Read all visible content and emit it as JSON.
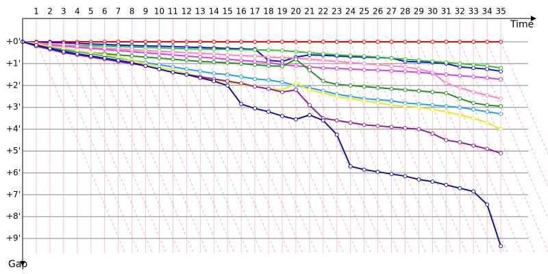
{
  "chart_data": {
    "type": "line",
    "x_label": "Time",
    "y_label": "Gap",
    "x": [
      0,
      1,
      2,
      3,
      4,
      5,
      6,
      7,
      8,
      9,
      10,
      11,
      12,
      13,
      14,
      15,
      16,
      17,
      18,
      19,
      20,
      21,
      22,
      23,
      24,
      25,
      26,
      27,
      28,
      29,
      30,
      31,
      32,
      33,
      34,
      35
    ],
    "xlim": [
      0,
      37
    ],
    "xticks": [
      1,
      2,
      3,
      4,
      5,
      6,
      7,
      8,
      9,
      10,
      11,
      12,
      13,
      14,
      15,
      16,
      17,
      18,
      19,
      20,
      21,
      22,
      23,
      24,
      25,
      26,
      27,
      28,
      29,
      30,
      31,
      32,
      33,
      34,
      35
    ],
    "ylim": [
      0,
      10
    ],
    "yticks": [
      {
        "value": 0,
        "label": "+0'"
      },
      {
        "value": 1,
        "label": "+1'"
      },
      {
        "value": 2,
        "label": "+2'"
      },
      {
        "value": 3,
        "label": "+3'"
      },
      {
        "value": 4,
        "label": "+4'"
      },
      {
        "value": 5,
        "label": "+5'"
      },
      {
        "value": 6,
        "label": "+6'"
      },
      {
        "value": 7,
        "label": "+7'"
      },
      {
        "value": 8,
        "label": "+8'"
      },
      {
        "value": 9,
        "label": "+9'"
      }
    ],
    "y_inverted": true,
    "grid": true,
    "series": [
      {
        "color": "#ff0000",
        "values": [
          0,
          0,
          0,
          0,
          0,
          0,
          0,
          0,
          0,
          0,
          0,
          0,
          0,
          0,
          0,
          0,
          0,
          0,
          0,
          0,
          0,
          0,
          0,
          0,
          0,
          0,
          0,
          0,
          0,
          0,
          0,
          0,
          0,
          0,
          0,
          0
        ]
      },
      {
        "color": "#1010e0",
        "values": [
          0,
          0.02,
          0.03,
          0.05,
          0.07,
          0.1,
          0.12,
          0.15,
          0.17,
          0.19,
          0.2,
          0.22,
          0.24,
          0.26,
          0.28,
          0.3,
          0.32,
          0.34,
          0.85,
          0.9,
          0.7,
          0.6,
          0.62,
          0.65,
          0.68,
          0.7,
          0.72,
          0.75,
          0.9,
          0.92,
          0.95,
          1.0,
          1.15,
          1.2,
          1.25,
          1.35
        ]
      },
      {
        "color": "#30c030",
        "values": [
          0,
          0.1,
          0.13,
          0.15,
          0.17,
          0.18,
          0.2,
          0.22,
          0.24,
          0.26,
          0.28,
          0.3,
          0.32,
          0.33,
          0.34,
          0.35,
          0.36,
          0.37,
          0.38,
          0.4,
          0.45,
          0.5,
          0.55,
          0.6,
          0.63,
          0.66,
          0.7,
          0.75,
          0.8,
          0.85,
          0.9,
          0.95,
          1.0,
          1.05,
          1.1,
          1.2
        ]
      },
      {
        "color": "#d040f0",
        "values": [
          0,
          0.1,
          0.15,
          0.2,
          0.25,
          0.3,
          0.35,
          0.4,
          0.45,
          0.5,
          0.55,
          0.6,
          0.65,
          0.7,
          0.75,
          0.8,
          0.85,
          0.9,
          0.95,
          1.05,
          1.1,
          1.15,
          1.2,
          1.22,
          1.25,
          1.28,
          1.3,
          1.33,
          1.36,
          1.4,
          1.45,
          1.5,
          1.55,
          1.6,
          1.65,
          1.72
        ]
      },
      {
        "color": "#ff80c0",
        "values": [
          0,
          0.05,
          0.1,
          0.15,
          0.2,
          0.25,
          0.3,
          0.33,
          0.36,
          0.4,
          0.43,
          0.46,
          0.5,
          0.53,
          0.56,
          0.6,
          0.63,
          0.66,
          0.7,
          0.72,
          0.75,
          0.8,
          0.85,
          0.9,
          0.95,
          1.0,
          1.05,
          1.1,
          1.15,
          1.25,
          1.4,
          1.9,
          2.1,
          2.3,
          2.45,
          2.6
        ]
      },
      {
        "color": "#209020",
        "values": [
          0,
          0.2,
          0.3,
          0.4,
          0.45,
          0.5,
          0.55,
          0.6,
          0.65,
          0.7,
          0.75,
          0.8,
          0.85,
          0.9,
          0.93,
          0.96,
          1.0,
          1.05,
          1.1,
          1.12,
          0.8,
          1.3,
          1.8,
          1.95,
          2.0,
          2.05,
          2.1,
          2.15,
          2.2,
          2.25,
          2.3,
          2.35,
          2.6,
          2.8,
          2.9,
          2.95
        ]
      },
      {
        "color": "#20a0f0",
        "values": [
          0,
          0.15,
          0.25,
          0.35,
          0.45,
          0.55,
          0.65,
          0.75,
          0.85,
          0.95,
          1.05,
          1.15,
          1.25,
          1.35,
          1.45,
          1.5,
          1.6,
          1.7,
          1.75,
          1.85,
          2.0,
          2.1,
          2.25,
          2.4,
          2.5,
          2.6,
          2.65,
          2.7,
          2.8,
          2.85,
          2.9,
          2.95,
          3.0,
          3.1,
          3.2,
          3.3
        ]
      },
      {
        "color": "#e8e820",
        "values": [
          0,
          0.1,
          0.2,
          0.3,
          0.4,
          0.5,
          0.6,
          0.7,
          0.85,
          1.0,
          1.15,
          1.3,
          1.45,
          1.6,
          1.75,
          1.85,
          1.95,
          2.05,
          2.15,
          2.2,
          1.9,
          2.2,
          2.35,
          2.5,
          2.6,
          2.7,
          2.8,
          2.9,
          2.95,
          3.0,
          3.1,
          3.2,
          3.35,
          3.5,
          3.7,
          4.0
        ]
      },
      {
        "color": "#902090",
        "values": [
          0,
          0.2,
          0.35,
          0.5,
          0.6,
          0.7,
          0.8,
          0.9,
          1.0,
          1.1,
          1.25,
          1.4,
          1.5,
          1.6,
          1.7,
          1.8,
          1.9,
          2.05,
          2.15,
          2.3,
          2.2,
          2.9,
          3.5,
          3.6,
          3.7,
          3.8,
          3.85,
          3.9,
          3.95,
          4.0,
          4.2,
          4.5,
          4.6,
          4.75,
          4.9,
          5.1
        ]
      },
      {
        "color": "#1010a0",
        "values": [
          0,
          0.15,
          0.3,
          0.45,
          0.55,
          0.65,
          0.75,
          0.85,
          0.95,
          1.1,
          1.25,
          1.4,
          1.5,
          1.65,
          1.8,
          2.0,
          2.85,
          3.05,
          3.2,
          3.4,
          3.55,
          3.35,
          3.6,
          4.25,
          5.7,
          5.85,
          5.95,
          6.05,
          6.15,
          6.3,
          6.4,
          6.55,
          6.7,
          6.85,
          7.45,
          9.35
        ]
      }
    ]
  }
}
